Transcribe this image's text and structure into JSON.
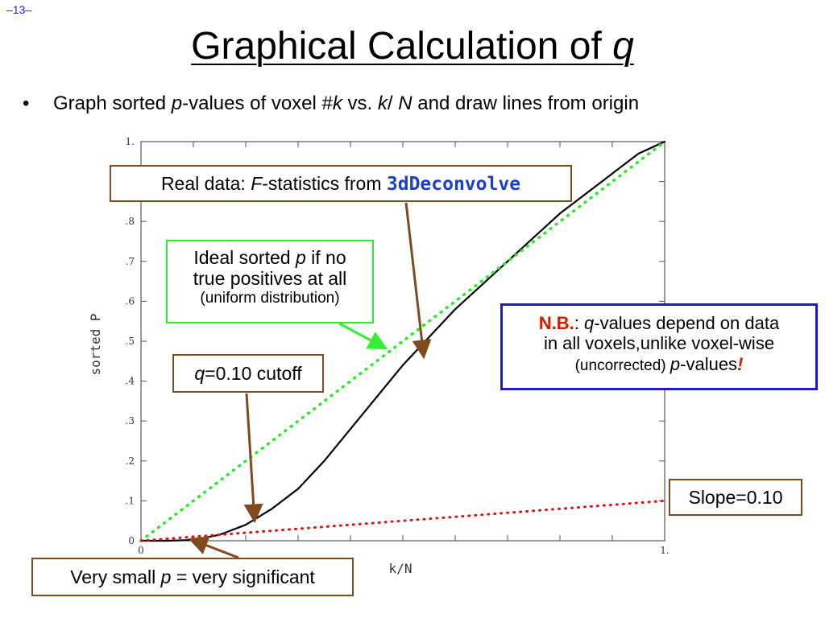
{
  "page": {
    "number": "–13–"
  },
  "title": {
    "text": "Graphical Calculation of ",
    "italic": "q"
  },
  "bullet": {
    "marker": "•",
    "parts": [
      "Graph sorted ",
      "p",
      "-values of voxel #",
      "k",
      " vs. ",
      "k",
      "/ ",
      "N",
      " and draw lines from origin"
    ]
  },
  "callouts": {
    "real_data": {
      "prefix": "Real data: ",
      "italic": "F",
      "middle": "-statistics from ",
      "code": "3dDeconvolve"
    },
    "ideal": {
      "line1a": "Ideal sorted ",
      "line1p": "p",
      "line1b": " if no",
      "line2": "true positives at all",
      "line3": "(uniform distribution)"
    },
    "cutoff": {
      "q": "q",
      "rest": "=0.10 cutoff"
    },
    "nb": {
      "head": "N.B.",
      "colon": ": ",
      "q": "q",
      "l1": "-values depend on data",
      "l2": "in all voxels,unlike voxel-wise",
      "l3a": "(uncorrected) ",
      "p": "p",
      "l3b": "-values",
      "bang": "!"
    },
    "slope": {
      "text": "Slope=0.10"
    },
    "small_p": {
      "a": "Very small ",
      "p": "p",
      "b": " = very significant"
    }
  },
  "colors": {
    "real_data_curve": "#000000",
    "ideal_line": "#22ee22",
    "slope_line": "#dd1111",
    "arrow_brown": "#7f4b1e",
    "arrow_green": "#33ee33",
    "nb_border": "#1c1ccc"
  },
  "chart_data": {
    "type": "line",
    "xlabel": "k/N",
    "ylabel": "sorted P",
    "xlim": [
      0,
      1
    ],
    "ylim": [
      0,
      1
    ],
    "x_tick_labels": [
      "0",
      "1."
    ],
    "y_tick_labels": [
      "0",
      ".1",
      ".2",
      ".3",
      ".4",
      ".5",
      ".6",
      ".7",
      ".8",
      "1."
    ],
    "series": [
      {
        "style": "solid",
        "points": [
          [
            0,
            0
          ],
          [
            0.05,
            0
          ],
          [
            0.1,
            0.002
          ],
          [
            0.15,
            0.015
          ],
          [
            0.2,
            0.04
          ],
          [
            0.25,
            0.08
          ],
          [
            0.3,
            0.13
          ],
          [
            0.35,
            0.2
          ],
          [
            0.4,
            0.28
          ],
          [
            0.45,
            0.36
          ],
          [
            0.5,
            0.44
          ],
          [
            0.55,
            0.51
          ],
          [
            0.6,
            0.58
          ],
          [
            0.65,
            0.64
          ],
          [
            0.7,
            0.7
          ],
          [
            0.75,
            0.76
          ],
          [
            0.8,
            0.82
          ],
          [
            0.85,
            0.87
          ],
          [
            0.9,
            0.92
          ],
          [
            0.95,
            0.97
          ],
          [
            1.0,
            1.0
          ]
        ]
      },
      {
        "style": "dotted",
        "points": [
          [
            0,
            0
          ],
          [
            1,
            1
          ]
        ]
      },
      {
        "style": "dotted",
        "points": [
          [
            0,
            0
          ],
          [
            1,
            0.1
          ]
        ]
      }
    ]
  }
}
